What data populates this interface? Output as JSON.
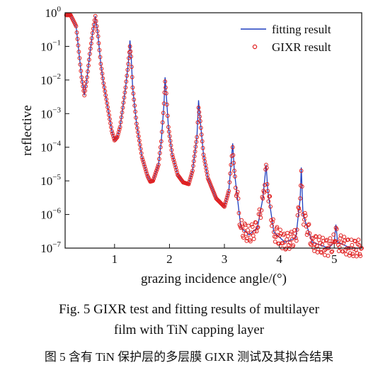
{
  "chart_data": {
    "type": "line",
    "xlabel": "grazing incidence angle/(°)",
    "ylabel": "reflective",
    "xlim": [
      0.1,
      5.5
    ],
    "ylim_log10": [
      -7,
      0
    ],
    "yscale": "log",
    "x_ticks": [
      1,
      2,
      3,
      4,
      5
    ],
    "x_tick_labels": [
      "1",
      "2",
      "3",
      "4",
      "5"
    ],
    "y_ticks": [
      {
        "base": "10",
        "exp": "0"
      },
      {
        "base": "10",
        "exp": "−1"
      },
      {
        "base": "10",
        "exp": "−2"
      },
      {
        "base": "10",
        "exp": "−3"
      },
      {
        "base": "10",
        "exp": "−4"
      },
      {
        "base": "10",
        "exp": "−5"
      },
      {
        "base": "10",
        "exp": "−6"
      },
      {
        "base": "10",
        "exp": "−7"
      }
    ],
    "legend_position": "top-right",
    "series": [
      {
        "name": "fitting result",
        "style": "line",
        "color": "#1f3fbf",
        "points": [
          [
            0.12,
            0.85
          ],
          [
            0.2,
            0.85
          ],
          [
            0.3,
            0.4
          ],
          [
            0.4,
            0.012
          ],
          [
            0.45,
            0.0035
          ],
          [
            0.5,
            0.012
          ],
          [
            0.55,
            0.06
          ],
          [
            0.6,
            0.25
          ],
          [
            0.65,
            0.8
          ],
          [
            0.7,
            0.2
          ],
          [
            0.75,
            0.03
          ],
          [
            0.8,
            0.008
          ],
          [
            0.9,
            0.0009
          ],
          [
            0.95,
            0.0003
          ],
          [
            1.0,
            0.00016
          ],
          [
            1.05,
            0.0002
          ],
          [
            1.1,
            0.0004
          ],
          [
            1.15,
            0.0015
          ],
          [
            1.2,
            0.006
          ],
          [
            1.25,
            0.03
          ],
          [
            1.28,
            0.15
          ],
          [
            1.3,
            0.06
          ],
          [
            1.33,
            0.006
          ],
          [
            1.4,
            0.0005
          ],
          [
            1.5,
            5e-05
          ],
          [
            1.6,
            1.4e-05
          ],
          [
            1.65,
            9.5e-06
          ],
          [
            1.7,
            1e-05
          ],
          [
            1.8,
            3e-05
          ],
          [
            1.85,
            0.00015
          ],
          [
            1.9,
            0.002
          ],
          [
            1.92,
            0.012
          ],
          [
            1.94,
            0.004
          ],
          [
            1.98,
            0.0004
          ],
          [
            2.05,
            6e-05
          ],
          [
            2.15,
            1.5e-05
          ],
          [
            2.25,
            9e-06
          ],
          [
            2.35,
            8e-06
          ],
          [
            2.42,
            2e-05
          ],
          [
            2.5,
            0.0002
          ],
          [
            2.53,
            0.0025
          ],
          [
            2.56,
            0.0006
          ],
          [
            2.62,
            6e-05
          ],
          [
            2.7,
            1.2e-05
          ],
          [
            2.85,
            3e-06
          ],
          [
            3.0,
            1.7e-06
          ],
          [
            3.08,
            5e-06
          ],
          [
            3.12,
            3e-05
          ],
          [
            3.15,
            0.00013
          ],
          [
            3.18,
            2e-05
          ],
          [
            3.3,
            4e-07
          ],
          [
            3.45,
            2.5e-07
          ],
          [
            3.6,
            4e-07
          ],
          [
            3.7,
            3e-06
          ],
          [
            3.76,
            3e-05
          ],
          [
            3.79,
            5e-06
          ],
          [
            3.9,
            3e-07
          ],
          [
            4.1,
            1.5e-07
          ],
          [
            4.3,
            2e-07
          ],
          [
            4.38,
            3e-06
          ],
          [
            4.4,
            2.5e-05
          ],
          [
            4.43,
            1e-06
          ],
          [
            4.6,
            1.5e-07
          ],
          [
            4.9,
            1e-07
          ],
          [
            5.0,
            1.5e-07
          ],
          [
            5.03,
            5e-07
          ],
          [
            5.06,
            1.5e-07
          ],
          [
            5.3,
            1e-07
          ],
          [
            5.5,
            1e-07
          ]
        ]
      },
      {
        "name": "GIXR result",
        "style": "markers",
        "color": "#e02020",
        "points": [
          [
            0.12,
            0.85
          ],
          [
            0.2,
            0.85
          ],
          [
            0.3,
            0.4
          ],
          [
            0.4,
            0.012
          ],
          [
            0.45,
            0.0035
          ],
          [
            0.5,
            0.012
          ],
          [
            0.55,
            0.06
          ],
          [
            0.6,
            0.25
          ],
          [
            0.65,
            0.8
          ],
          [
            0.7,
            0.2
          ],
          [
            0.75,
            0.03
          ],
          [
            0.8,
            0.008
          ],
          [
            0.9,
            0.0009
          ],
          [
            0.95,
            0.0003
          ],
          [
            1.0,
            0.00016
          ],
          [
            1.05,
            0.0002
          ],
          [
            1.1,
            0.0004
          ],
          [
            1.15,
            0.0015
          ],
          [
            1.2,
            0.006
          ],
          [
            1.25,
            0.03
          ],
          [
            1.28,
            0.1
          ],
          [
            1.3,
            0.05
          ],
          [
            1.33,
            0.006
          ],
          [
            1.4,
            0.0005
          ],
          [
            1.5,
            5e-05
          ],
          [
            1.6,
            1.4e-05
          ],
          [
            1.65,
            9.5e-06
          ],
          [
            1.7,
            1e-05
          ],
          [
            1.8,
            3e-05
          ],
          [
            1.85,
            0.00015
          ],
          [
            1.9,
            0.002
          ],
          [
            1.92,
            0.009
          ],
          [
            1.94,
            0.004
          ],
          [
            1.98,
            0.0004
          ],
          [
            2.05,
            6e-05
          ],
          [
            2.15,
            1.5e-05
          ],
          [
            2.25,
            9e-06
          ],
          [
            2.35,
            8e-06
          ],
          [
            2.42,
            2e-05
          ],
          [
            2.5,
            0.0002
          ],
          [
            2.53,
            0.0015
          ],
          [
            2.56,
            0.0006
          ],
          [
            2.62,
            6e-05
          ],
          [
            2.7,
            1.2e-05
          ],
          [
            2.85,
            3e-06
          ],
          [
            3.0,
            1.7e-06
          ],
          [
            3.08,
            5e-06
          ],
          [
            3.12,
            3e-05
          ],
          [
            3.15,
            0.0001
          ],
          [
            3.18,
            2e-05
          ],
          [
            3.3,
            4e-07
          ],
          [
            3.45,
            2.5e-07
          ],
          [
            3.6,
            4e-07
          ],
          [
            3.7,
            3e-06
          ],
          [
            3.76,
            3e-05
          ],
          [
            3.79,
            5e-06
          ],
          [
            3.9,
            3e-07
          ],
          [
            4.1,
            1.5e-07
          ],
          [
            4.3,
            2e-07
          ],
          [
            4.38,
            3e-06
          ],
          [
            4.4,
            2e-05
          ],
          [
            4.43,
            1e-06
          ],
          [
            4.6,
            1.5e-07
          ],
          [
            4.9,
            1e-07
          ],
          [
            5.0,
            1.5e-07
          ],
          [
            5.03,
            4e-07
          ],
          [
            5.06,
            1.5e-07
          ],
          [
            5.3,
            1e-07
          ],
          [
            5.5,
            1e-07
          ]
        ]
      }
    ]
  },
  "caption": {
    "line1": "Fig. 5    GIXR test and fitting results of multilayer",
    "line2": "film with TiN capping layer",
    "line3": "图 5    含有 TiN 保护层的多层膜 GIXR 测试及其拟合结果"
  }
}
